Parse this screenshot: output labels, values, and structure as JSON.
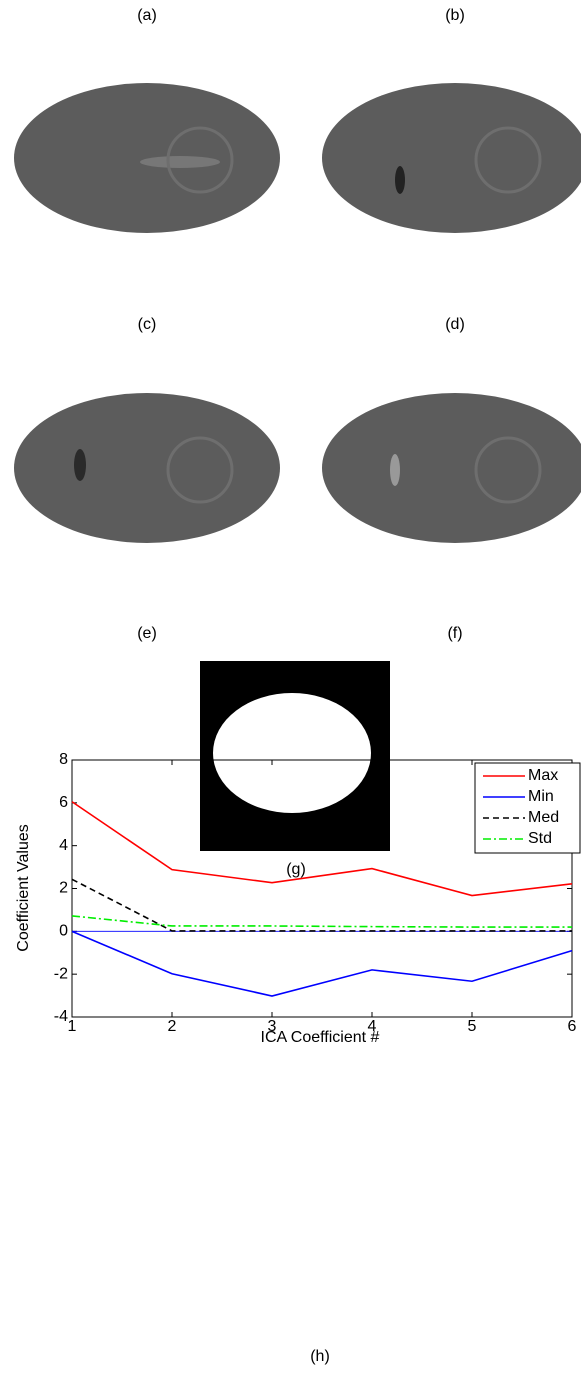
{
  "panel_labels": [
    "(a)",
    "(b)",
    "(c)",
    "(d)",
    "(e)",
    "(f)",
    "(g)",
    "(h)"
  ],
  "chart_data": {
    "type": "line",
    "xlabel": "ICA Coefficient #",
    "ylabel": "Coefficient Values",
    "x": [
      1,
      2,
      3,
      4,
      5,
      6
    ],
    "xlim": [
      1,
      6
    ],
    "xticks": [
      1,
      2,
      3,
      4,
      5,
      6
    ],
    "ylim": [
      -4,
      8
    ],
    "yticks": [
      -4,
      -2,
      0,
      2,
      4,
      6,
      8
    ],
    "legend": "upper right",
    "series": [
      {
        "name": "Max",
        "color": "#ff0000",
        "dash": "solid",
        "values": [
          6.05,
          2.88,
          2.27,
          2.93,
          1.67,
          2.22
        ]
      },
      {
        "name": "Min",
        "color": "#0000ff",
        "dash": "solid",
        "values": [
          0,
          -1.98,
          -3.02,
          -1.8,
          -2.33,
          -0.9
        ]
      },
      {
        "name": "Med",
        "color": "#000000",
        "dash": "dashed",
        "values": [
          2.43,
          0.02,
          0.02,
          0.02,
          0.02,
          0.02
        ]
      },
      {
        "name": "Std",
        "color": "#00ee00",
        "dash": "dashdot",
        "values": [
          0.72,
          0.25,
          0.25,
          0.22,
          0.2,
          0.2
        ]
      }
    ]
  }
}
